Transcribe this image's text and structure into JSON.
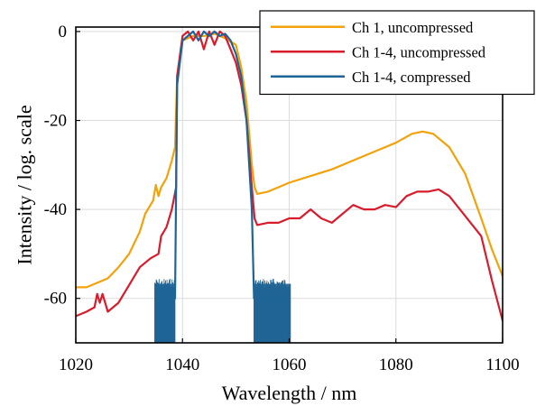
{
  "chart_data": {
    "type": "line",
    "xlabel": "Wavelength / nm",
    "ylabel": "Intensity / log. scale",
    "xlim": [
      1020,
      1100
    ],
    "ylim": [
      -70,
      1
    ],
    "x_ticks": [
      1020,
      1040,
      1060,
      1080,
      1100
    ],
    "y_ticks": [
      0,
      -20,
      -40,
      -60
    ],
    "y_tick_labels": [
      "0",
      "-20",
      "-40",
      "-60"
    ],
    "grid": true,
    "legend_position": "top-right",
    "series": [
      {
        "name": "Ch 1, uncompressed",
        "color": "#f2a20a",
        "x": [
          1020,
          1022,
          1024,
          1026,
          1028,
          1030,
          1032,
          1033,
          1034.5,
          1035,
          1035.5,
          1036,
          1037,
          1038,
          1038.6,
          1039,
          1040,
          1042,
          1044,
          1046,
          1048,
          1050,
          1051,
          1052,
          1053,
          1053.5,
          1054,
          1056,
          1058,
          1060,
          1064,
          1068,
          1072,
          1076,
          1080,
          1083,
          1085,
          1087,
          1090,
          1093,
          1096,
          1098,
          1100
        ],
        "y": [
          -57.5,
          -57.5,
          -56.5,
          -55.5,
          -53,
          -50,
          -45,
          -41,
          -38,
          -34.5,
          -37,
          -35,
          -33,
          -29,
          -26,
          -10,
          -2,
          -1,
          -1,
          -0.5,
          -1.5,
          -3,
          -8,
          -16,
          -30,
          -35,
          -36.5,
          -36,
          -35,
          -34,
          -32.5,
          -31,
          -29,
          -27,
          -25,
          -23,
          -22.5,
          -23,
          -26,
          -32,
          -42,
          -49,
          -55
        ]
      },
      {
        "name": "Ch 1-4, uncompressed",
        "color": "#d81c2c",
        "x": [
          1020,
          1022,
          1023.5,
          1024,
          1024.5,
          1025,
          1026,
          1028,
          1030,
          1032,
          1034,
          1035.5,
          1036,
          1037,
          1038,
          1038.8,
          1039,
          1040,
          1041,
          1042,
          1043,
          1044,
          1045,
          1046,
          1047,
          1048,
          1049,
          1050,
          1051,
          1052,
          1053,
          1053.5,
          1054,
          1056,
          1058,
          1060,
          1062,
          1064,
          1066,
          1068,
          1070,
          1072,
          1074,
          1076,
          1078,
          1080,
          1082,
          1084,
          1086,
          1088,
          1090,
          1092,
          1094,
          1096,
          1098,
          1100
        ],
        "y": [
          -64,
          -63,
          -62,
          -59,
          -61,
          -59,
          -63,
          -61,
          -57,
          -53,
          -51,
          -50,
          -46,
          -44,
          -40,
          -35,
          -10,
          -1,
          0,
          -2,
          0,
          -4,
          0,
          -3,
          0,
          -1,
          -4,
          -7,
          -12,
          -20,
          -35,
          -42,
          -43.5,
          -43,
          -43,
          -42,
          -42,
          -40,
          -42,
          -43,
          -41,
          -39,
          -40,
          -40,
          -39,
          -39.5,
          -37,
          -36,
          -36,
          -35.5,
          -37,
          -40,
          -43,
          -46,
          -56,
          -65
        ]
      },
      {
        "name": "Ch 1-4, compressed",
        "color": "#1e6496",
        "x": [
          1038.6,
          1039,
          1040,
          1041,
          1042,
          1043,
          1044,
          1045,
          1046,
          1047,
          1048,
          1049,
          1050,
          1051,
          1052,
          1053,
          1053.4
        ],
        "y": [
          -60,
          -12,
          -2,
          -1,
          0,
          -2,
          0,
          -1,
          0,
          -1,
          -0.5,
          -2,
          -5,
          -10,
          -20,
          -40,
          -60
        ]
      }
    ],
    "noise_bands": [
      {
        "series": "Ch 1-4, compressed",
        "x_range": [
          1034.8,
          1038.6
        ],
        "y_range": [
          -70,
          -55.5
        ]
      },
      {
        "series": "Ch 1-4, compressed",
        "x_range": [
          1053.4,
          1060.3
        ],
        "y_range": [
          -70,
          -55.5
        ]
      }
    ]
  }
}
